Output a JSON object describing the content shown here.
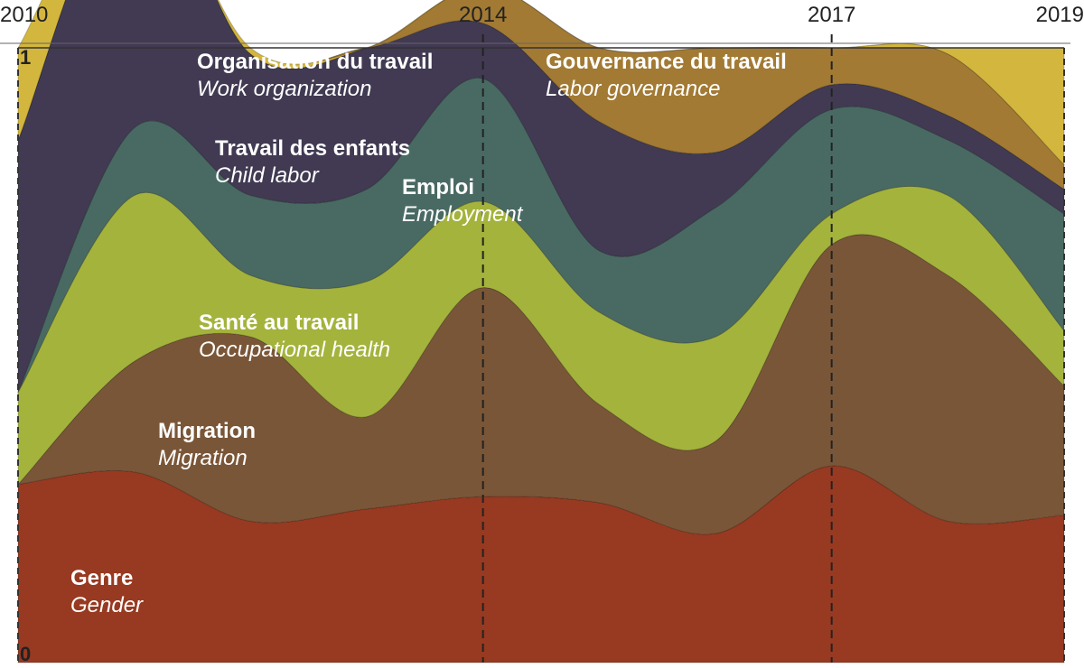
{
  "chart_data": {
    "type": "area",
    "stacked": true,
    "normalized": true,
    "x": [
      2010,
      2011,
      2012,
      2013,
      2014,
      2015,
      2016,
      2017,
      2018,
      2019
    ],
    "x_ticks": [
      "2010",
      "2014",
      "2017",
      "2019"
    ],
    "y_ticks": [
      "0",
      "1"
    ],
    "ylim": [
      0,
      1
    ],
    "reference_lines": [
      "2014",
      "2017"
    ],
    "series": [
      {
        "name": "Genre",
        "name_en": "Gender",
        "color": "#973a21",
        "values": [
          0.29,
          0.31,
          0.23,
          0.25,
          0.27,
          0.26,
          0.21,
          0.32,
          0.23,
          0.24
        ]
      },
      {
        "name": "Migration",
        "name_en": "Migration",
        "color": "#7a5638",
        "values": [
          0.0,
          0.18,
          0.3,
          0.15,
          0.34,
          0.16,
          0.15,
          0.36,
          0.4,
          0.21
        ]
      },
      {
        "name": "Santé au travail",
        "name_en": "Occupational health",
        "color": "#a4b33c",
        "values": [
          0.15,
          0.27,
          0.1,
          0.22,
          0.14,
          0.15,
          0.17,
          0.05,
          0.13,
          0.09
        ]
      },
      {
        "name": "Emploi",
        "name_en": "Employment",
        "color": "#496a63",
        "values": [
          0.0,
          0.11,
          0.13,
          0.15,
          0.2,
          0.1,
          0.21,
          0.17,
          0.09,
          0.19
        ]
      },
      {
        "name": "Travail des enfants",
        "name_en": "Child labor",
        "color": "#413a52",
        "values": [
          0.41,
          0.43,
          0.23,
          0.23,
          0.09,
          0.21,
          0.09,
          0.04,
          0.04,
          0.04
        ]
      },
      {
        "name": "Gouvernance du travail",
        "name_en": "Labor governance",
        "color": "#a27a33",
        "values": [
          0.0,
          0.0,
          0.0,
          0.0,
          0.06,
          0.12,
          0.17,
          0.06,
          0.1,
          0.04
        ]
      },
      {
        "name": "Organisation du travail",
        "name_en": "Work organization",
        "color": "#d3b63d",
        "values": [
          0.15,
          0.0,
          0.01,
          0.0,
          0.0,
          0.0,
          0.0,
          0.0,
          0.01,
          0.19
        ]
      }
    ]
  }
}
